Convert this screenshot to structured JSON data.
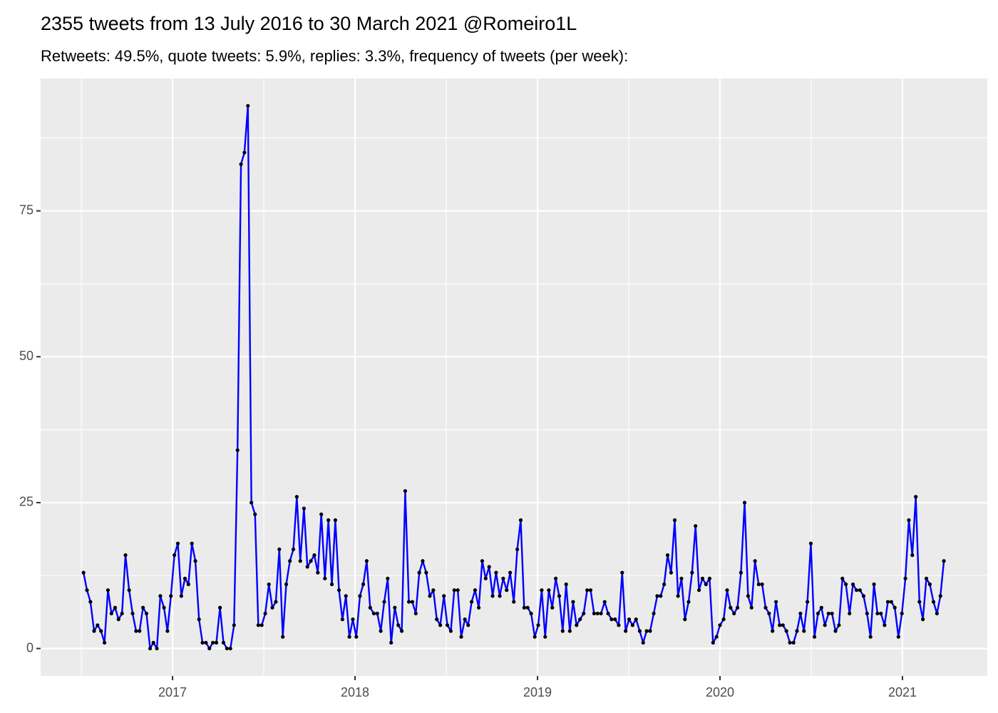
{
  "chart_data": {
    "type": "line",
    "title": "2355 tweets from 13 July 2016 to 30 March 2021 @Romeiro1L",
    "subtitle": "Retweets: 49.5%, quote tweets: 5.9%, replies: 3.3%, frequency of tweets (per week):",
    "color": "#0000ff",
    "point_color": "#000000",
    "grid": true,
    "xlim": [
      2016.277,
      2021.465
    ],
    "xticks": [
      2017,
      2018,
      2019,
      2020,
      2021
    ],
    "ylim": [
      -4.7,
      97.7
    ],
    "yticks": [
      0,
      25,
      50,
      75
    ],
    "x": [
      2016.512,
      2016.531,
      2016.55,
      2016.57,
      2016.589,
      2016.608,
      2016.627,
      2016.646,
      2016.665,
      2016.685,
      2016.704,
      2016.723,
      2016.742,
      2016.762,
      2016.781,
      2016.8,
      2016.819,
      2016.838,
      2016.857,
      2016.877,
      2016.895,
      2016.914,
      2016.933,
      2016.953,
      2016.972,
      2016.991,
      2017.01,
      2017.029,
      2017.048,
      2017.068,
      2017.087,
      2017.106,
      2017.125,
      2017.145,
      2017.164,
      2017.183,
      2017.202,
      2017.221,
      2017.24,
      2017.26,
      2017.279,
      2017.298,
      2017.317,
      2017.337,
      2017.356,
      2017.375,
      2017.394,
      2017.413,
      2017.432,
      2017.452,
      2017.47,
      2017.489,
      2017.508,
      2017.528,
      2017.547,
      2017.566,
      2017.585,
      2017.604,
      2017.623,
      2017.643,
      2017.662,
      2017.681,
      2017.7,
      2017.72,
      2017.739,
      2017.758,
      2017.777,
      2017.796,
      2017.815,
      2017.835,
      2017.854,
      2017.873,
      2017.892,
      2017.912,
      2017.931,
      2017.95,
      2017.969,
      2017.988,
      2018.007,
      2018.027,
      2018.045,
      2018.064,
      2018.083,
      2018.103,
      2018.122,
      2018.141,
      2018.16,
      2018.179,
      2018.198,
      2018.218,
      2018.237,
      2018.256,
      2018.275,
      2018.295,
      2018.314,
      2018.333,
      2018.352,
      2018.371,
      2018.39,
      2018.41,
      2018.429,
      2018.448,
      2018.467,
      2018.487,
      2018.506,
      2018.525,
      2018.544,
      2018.563,
      2018.582,
      2018.602,
      2018.62,
      2018.639,
      2018.658,
      2018.678,
      2018.697,
      2018.716,
      2018.735,
      2018.754,
      2018.773,
      2018.793,
      2018.812,
      2018.831,
      2018.85,
      2018.87,
      2018.889,
      2018.908,
      2018.927,
      2018.946,
      2018.965,
      2018.985,
      2019.004,
      2019.023,
      2019.042,
      2019.062,
      2019.081,
      2019.1,
      2019.119,
      2019.138,
      2019.157,
      2019.177,
      2019.195,
      2019.214,
      2019.233,
      2019.253,
      2019.272,
      2019.291,
      2019.31,
      2019.329,
      2019.348,
      2019.368,
      2019.387,
      2019.406,
      2019.425,
      2019.445,
      2019.464,
      2019.483,
      2019.502,
      2019.521,
      2019.54,
      2019.56,
      2019.579,
      2019.598,
      2019.617,
      2019.637,
      2019.656,
      2019.675,
      2019.694,
      2019.713,
      2019.732,
      2019.752,
      2019.77,
      2019.789,
      2019.808,
      2019.828,
      2019.847,
      2019.866,
      2019.885,
      2019.904,
      2019.923,
      2019.943,
      2019.962,
      2019.981,
      2020.0,
      2020.02,
      2020.039,
      2020.058,
      2020.077,
      2020.096,
      2020.115,
      2020.135,
      2020.154,
      2020.173,
      2020.192,
      2020.212,
      2020.231,
      2020.25,
      2020.269,
      2020.288,
      2020.307,
      2020.327,
      2020.345,
      2020.364,
      2020.383,
      2020.403,
      2020.422,
      2020.441,
      2020.46,
      2020.479,
      2020.498,
      2020.518,
      2020.537,
      2020.556,
      2020.575,
      2020.595,
      2020.614,
      2020.633,
      2020.652,
      2020.671,
      2020.69,
      2020.71,
      2020.729,
      2020.748,
      2020.767,
      2020.787,
      2020.806,
      2020.825,
      2020.844,
      2020.863,
      2020.882,
      2020.902,
      2020.92,
      2020.939,
      2020.958,
      2020.978,
      2020.997,
      2021.016,
      2021.035,
      2021.054,
      2021.073,
      2021.093,
      2021.112,
      2021.131,
      2021.15,
      2021.17,
      2021.189,
      2021.208,
      2021.227
    ],
    "values": [
      13,
      10,
      8,
      3,
      4,
      3,
      1,
      10,
      6,
      7,
      5,
      6,
      16,
      10,
      6,
      3,
      3,
      7,
      6,
      0,
      1,
      0,
      9,
      7,
      3,
      9,
      16,
      18,
      9,
      12,
      11,
      18,
      15,
      5,
      1,
      1,
      0,
      1,
      1,
      7,
      1,
      0,
      0,
      4,
      34,
      83,
      85,
      93,
      25,
      23,
      4,
      4,
      6,
      11,
      7,
      8,
      17,
      2,
      11,
      15,
      17,
      26,
      15,
      24,
      14,
      15,
      16,
      13,
      23,
      12,
      22,
      11,
      22,
      10,
      5,
      9,
      2,
      5,
      2,
      9,
      11,
      15,
      7,
      6,
      6,
      3,
      8,
      12,
      1,
      7,
      4,
      3,
      27,
      8,
      8,
      6,
      13,
      15,
      13,
      9,
      10,
      5,
      4,
      9,
      4,
      3,
      10,
      10,
      2,
      5,
      4,
      8,
      10,
      7,
      15,
      12,
      14,
      9,
      13,
      9,
      12,
      10,
      13,
      8,
      17,
      22,
      7,
      7,
      6,
      2,
      4,
      10,
      2,
      10,
      7,
      12,
      9,
      3,
      11,
      3,
      8,
      4,
      5,
      6,
      10,
      10,
      6,
      6,
      6,
      8,
      6,
      5,
      5,
      4,
      13,
      3,
      5,
      4,
      5,
      3,
      1,
      3,
      3,
      6,
      9,
      9,
      11,
      16,
      13,
      22,
      9,
      12,
      5,
      8,
      13,
      21,
      10,
      12,
      11,
      12,
      1,
      2,
      4,
      5,
      10,
      7,
      6,
      7,
      13,
      25,
      9,
      7,
      15,
      11,
      11,
      7,
      6,
      3,
      8,
      4,
      4,
      3,
      1,
      1,
      3,
      6,
      3,
      8,
      18,
      2,
      6,
      7,
      4,
      6,
      6,
      3,
      4,
      12,
      11,
      6,
      11,
      10,
      10,
      9,
      6,
      2,
      11,
      6,
      6,
      4,
      8,
      8,
      7,
      2,
      6,
      12,
      22,
      16,
      26,
      8,
      5,
      12,
      11,
      8,
      6,
      9,
      15
    ]
  }
}
